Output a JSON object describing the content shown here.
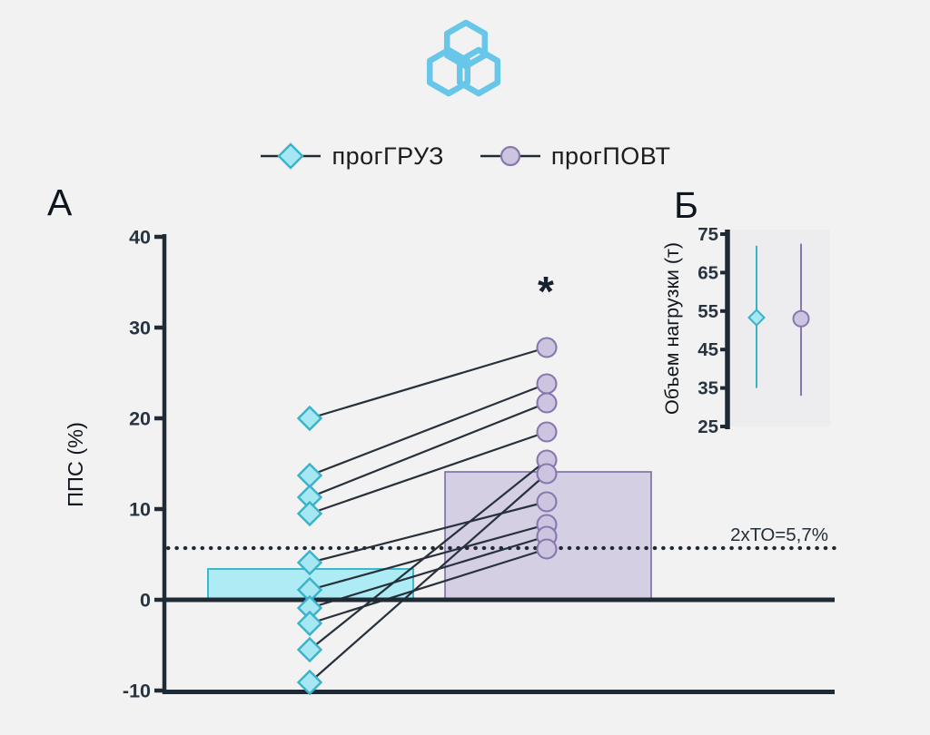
{
  "colors": {
    "background": "#f3f2f3",
    "ink": "#1f2a35",
    "logo": "#5ec3e9",
    "cyan_fill": "#a5e8f3",
    "cyan_stroke": "#3ab2c8",
    "purple_fill": "#cdc5e0",
    "purple_stroke": "#8678ae",
    "cyan_bar": "#a5ebf5",
    "cyan_bar_stroke": "#2bb3c9",
    "purple_bar": "#c9c1dc",
    "purple_bar_stroke": "#7b6ca6",
    "panelb_bg": "#edecee"
  },
  "legend": {
    "items": [
      {
        "label": "прогГРУЗ",
        "marker": "diamond"
      },
      {
        "label": "прогПОВТ",
        "marker": "circle"
      }
    ]
  },
  "chart_data": [
    {
      "id": "A",
      "type": "paired-scatter-bar",
      "title": "А",
      "ylabel": "ППС (%)",
      "ylim": [
        -10,
        40
      ],
      "yticks": [
        40,
        30,
        20,
        10,
        0,
        -10
      ],
      "groups": [
        "прогГРУЗ",
        "прогПОВТ"
      ],
      "bar_means": [
        3.4,
        14.1
      ],
      "pairs": [
        [
          20.0,
          27.8
        ],
        [
          13.7,
          23.8
        ],
        [
          11.3,
          21.7
        ],
        [
          9.5,
          18.5
        ],
        [
          4.1,
          10.8
        ],
        [
          1.1,
          8.3
        ],
        [
          -0.9,
          7.0
        ],
        [
          -2.6,
          5.6
        ],
        [
          -5.5,
          15.4
        ],
        [
          -9.1,
          13.9
        ]
      ],
      "threshold": {
        "value": 5.7,
        "label": "2хТО=5,7%"
      },
      "significance": "*",
      "legend_position": "top",
      "grid": false
    },
    {
      "id": "B",
      "type": "point-errorbar",
      "title": "Б",
      "ylabel": "Объем нагрузки (т)",
      "ylim": [
        25,
        75
      ],
      "yticks": [
        75,
        65,
        55,
        45,
        35,
        25
      ],
      "series": [
        {
          "name": "прогГРУЗ",
          "mean": 53.3,
          "ci": [
            35,
            72
          ]
        },
        {
          "name": "прогПОВТ",
          "mean": 53.0,
          "ci": [
            33,
            72.5
          ]
        }
      ],
      "grid": false
    }
  ]
}
